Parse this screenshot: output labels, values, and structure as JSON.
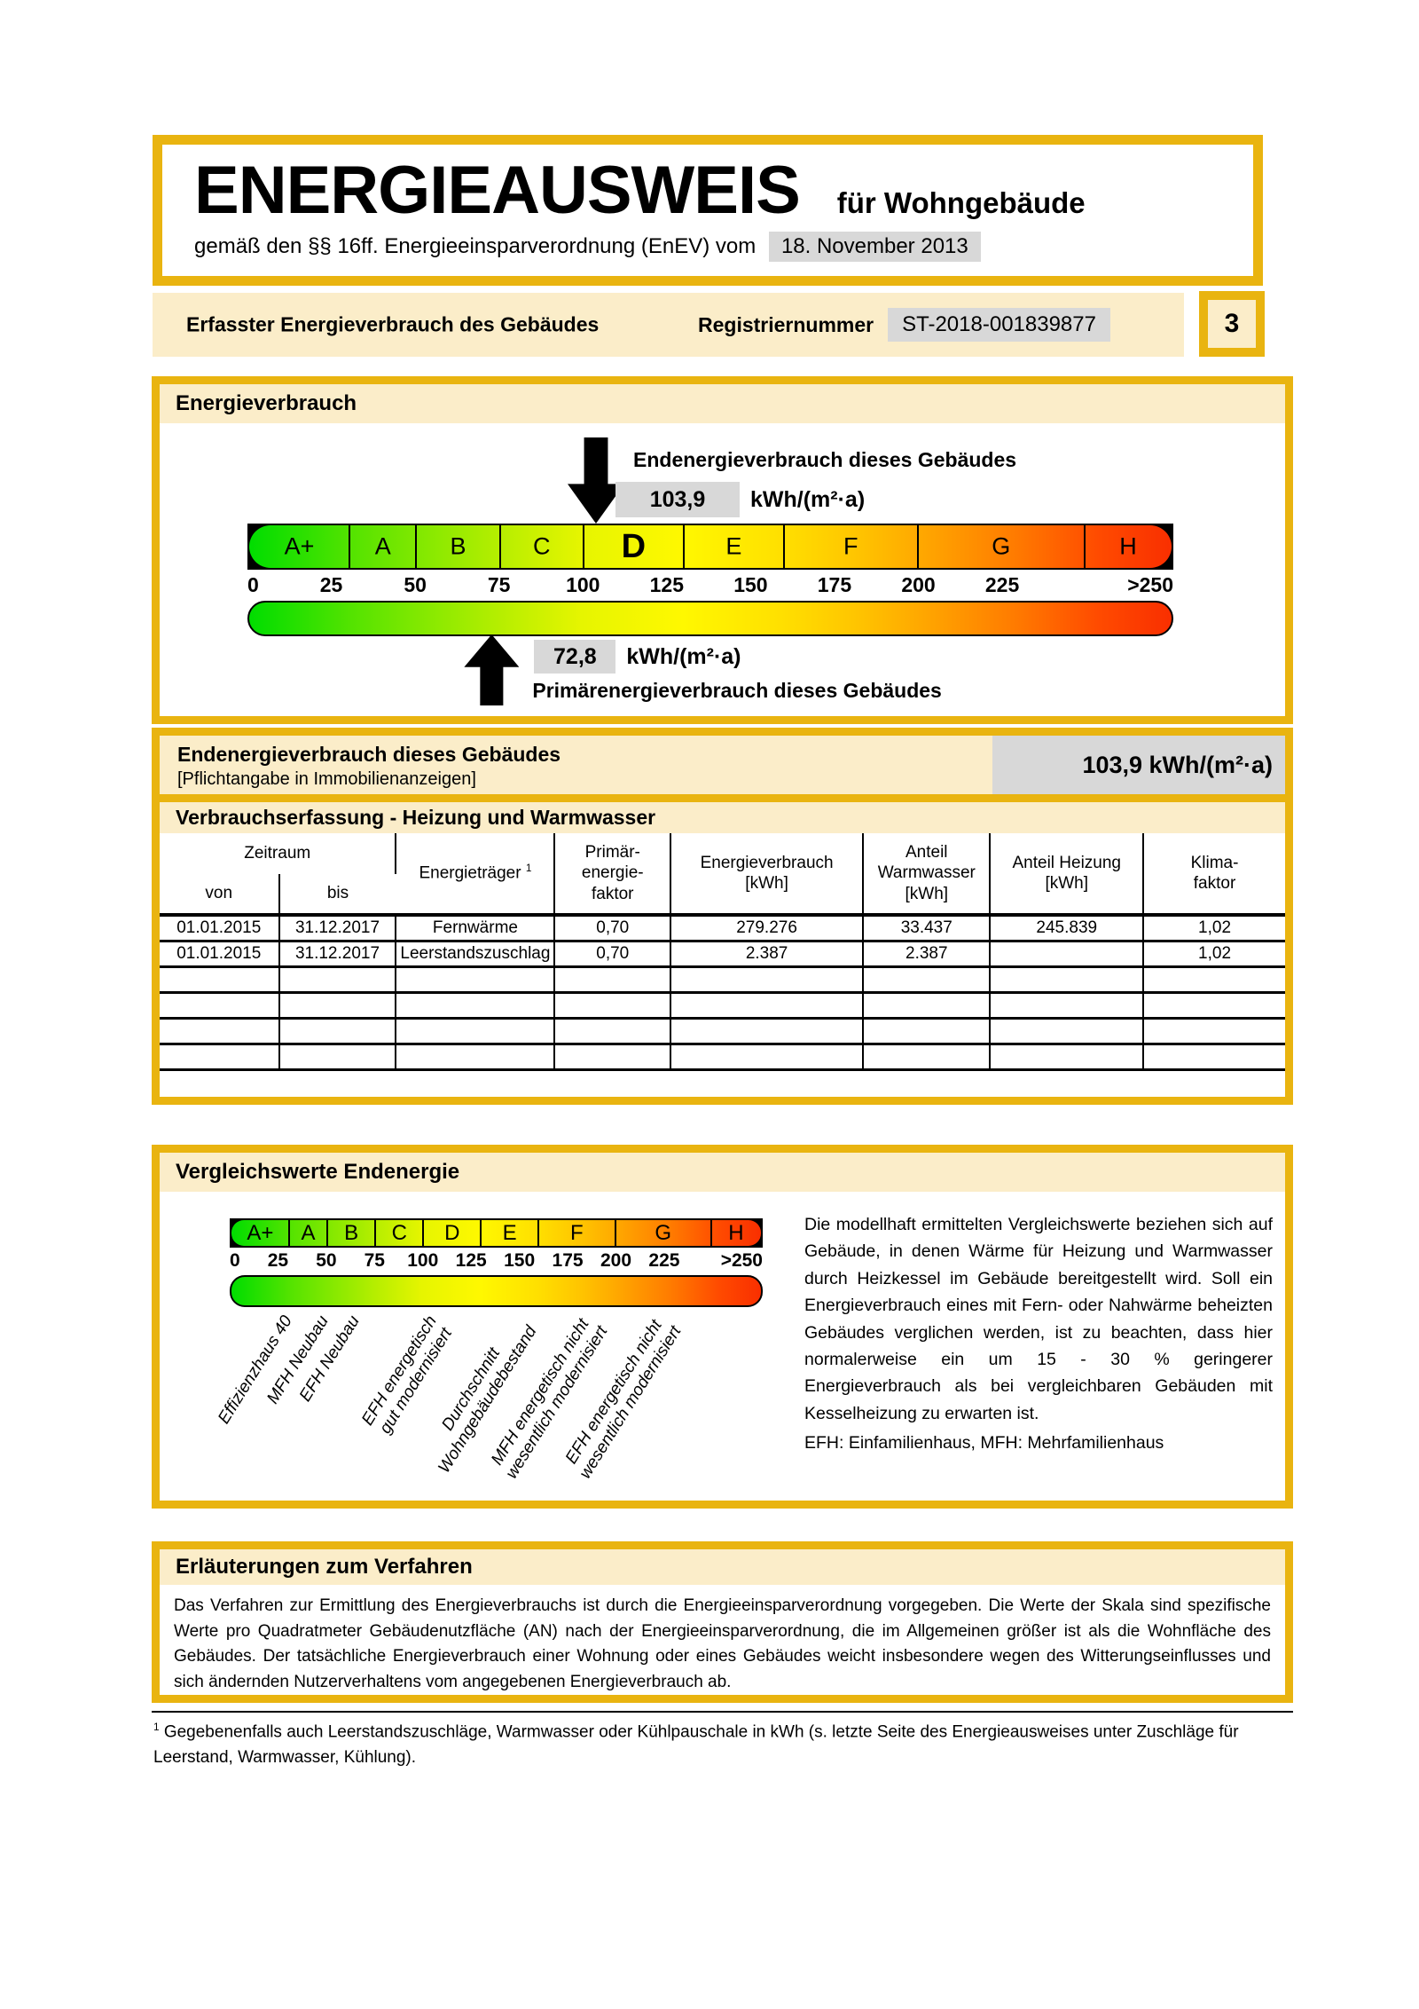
{
  "document": {
    "title": "ENERGIEAUSWEIS",
    "title_suffix": "für Wohngebäude",
    "law_line": "gemäß den §§ 16ff. Energieeinsparverordnung (EnEV) vom",
    "law_date": "18. November 2013",
    "section_label": "Erfasster Energieverbrauch des Gebäudes",
    "register_label": "Registriernummer",
    "register_number": "ST-2018-001839877",
    "page_number": "3"
  },
  "colors": {
    "gold": "#e9b410",
    "cream": "#fbedc9",
    "gray": "#d8d8d8",
    "gradient": [
      "#00dd00 0%",
      "#53e300 11%",
      "#7fe800 18%",
      "#b5ee00 27%",
      "#e6f500 36%",
      "#fff800 47%",
      "#ffdf00 58%",
      "#ffc400 66%",
      "#ffa700 73%",
      "#ff7b00 83%",
      "#ff4b00 92%",
      "#f92f00 100%"
    ]
  },
  "scale": {
    "title": "Energieverbrauch",
    "unit": "kWh/(m²·a)",
    "scale_end": 276,
    "highlight_band": "D",
    "bands": [
      {
        "label": "A+",
        "from": 0,
        "to": 30
      },
      {
        "label": "A",
        "from": 30,
        "to": 50
      },
      {
        "label": "B",
        "from": 50,
        "to": 75
      },
      {
        "label": "C",
        "from": 75,
        "to": 100
      },
      {
        "label": "D",
        "from": 100,
        "to": 130
      },
      {
        "label": "E",
        "from": 130,
        "to": 160
      },
      {
        "label": "F",
        "from": 160,
        "to": 200
      },
      {
        "label": "G",
        "from": 200,
        "to": 250
      },
      {
        "label": "H",
        "from": 250,
        "to": 276
      }
    ],
    "ticks": [
      {
        "label": "0",
        "value": 0,
        "align": "left"
      },
      {
        "label": "25",
        "value": 25
      },
      {
        "label": "50",
        "value": 50
      },
      {
        "label": "75",
        "value": 75
      },
      {
        "label": "100",
        "value": 100
      },
      {
        "label": "125",
        "value": 125
      },
      {
        "label": "150",
        "value": 150
      },
      {
        "label": "175",
        "value": 175
      },
      {
        "label": "200",
        "value": 200
      },
      {
        "label": "225",
        "value": 225
      },
      {
        "label": ">250",
        "value": 276,
        "align": "right"
      }
    ],
    "end_energy": {
      "label": "Endenergieverbrauch dieses Gebäudes",
      "display": "103,9",
      "value": 103.9
    },
    "primary_energy": {
      "label": "Primärenergieverbrauch dieses Gebäudes",
      "display": "72,8",
      "value": 72.8
    }
  },
  "banner": {
    "title": "Endenergieverbrauch dieses Gebäudes",
    "subtitle": "[Pflichtangabe in Immobilienanzeigen]",
    "value": "103,9 kWh/(m²·a)"
  },
  "consumption_table": {
    "title": "Verbrauchserfassung - Heizung und Warmwasser",
    "header": {
      "period": "Zeitraum",
      "from": "von",
      "to": "bis",
      "carrier": "Energieträger",
      "carrier_sup": "1",
      "primary_factor": "Primär-\nenergie-\nfaktor",
      "consumption": "Energieverbrauch\n[kWh]",
      "hot_water_share": "Anteil\nWarmwasser\n[kWh]",
      "heating_share": "Anteil Heizung\n[kWh]",
      "climate_factor": "Klima-\nfaktor"
    },
    "rows": [
      {
        "from": "01.01.2015",
        "to": "31.12.2017",
        "carrier": "Fernwärme",
        "primary_factor": "0,70",
        "consumption": "279.276",
        "hot_water": "33.437",
        "heating": "245.839",
        "climate": "1,02"
      },
      {
        "from": "01.01.2015",
        "to": "31.12.2017",
        "carrier": "Leerstandszuschlag",
        "primary_factor": "0,70",
        "consumption": "2.387",
        "hot_water": "2.387",
        "heating": "",
        "climate": "1,02"
      }
    ],
    "empty_rows": 4
  },
  "comparison": {
    "title": "Vergleichswerte Endenergie",
    "reference_labels": [
      {
        "text": "Effizienzhaus 40",
        "value": 26
      },
      {
        "text": "MFH Neubau",
        "value": 45
      },
      {
        "text": "EFH Neubau",
        "value": 61
      },
      {
        "text": "EFH energetisch\ngut modernisiert",
        "value": 101
      },
      {
        "text": "Durchschnitt\nWohngebäudebestand",
        "value": 144
      },
      {
        "text": "MFH energetisch nicht\nwesentlich modernisiert",
        "value": 181
      },
      {
        "text": "EFH energetisch nicht\nwesentlich modernisiert",
        "value": 219
      }
    ],
    "body_text": "Die modellhaft ermittelten Vergleichswerte beziehen sich auf Gebäude, in denen Wärme für Heizung und Warmwasser durch Heizkessel im Gebäude bereitgestellt wird. Soll ein Energieverbrauch eines mit Fern- oder Nahwärme beheizten Gebäudes verglichen werden, ist zu beachten, dass hier normalerweise ein um 15 - 30 % geringerer Energieverbrauch als bei vergleichbaren Gebäuden mit Kesselheizung zu erwarten ist.",
    "abbreviation_note": "EFH: Einfamilienhaus, MFH: Mehrfamilienhaus"
  },
  "explanation": {
    "title": "Erläuterungen zum Verfahren",
    "body_text": "Das Verfahren zur Ermittlung des Energieverbrauchs ist durch die Energieeinsparverordnung vorgegeben. Die Werte der Skala sind spezifische Werte pro Quadratmeter Gebäudenutzfläche (AN) nach der Energieeinsparverordnung, die im Allgemeinen größer ist als die Wohnfläche des Gebäudes. Der tatsächliche Energieverbrauch einer Wohnung oder eines Gebäudes weicht insbesondere wegen des Witterungseinflusses und sich ändernden Nutzerverhaltens vom angegebenen Energieverbrauch ab."
  },
  "footnote": {
    "marker": "1",
    "text": "Gegebenenfalls auch Leerstandszuschläge, Warmwasser oder Kühlpauschale in kWh (s. letzte Seite des Energieausweises unter Zuschläge für Leerstand, Warmwasser, Kühlung)."
  }
}
